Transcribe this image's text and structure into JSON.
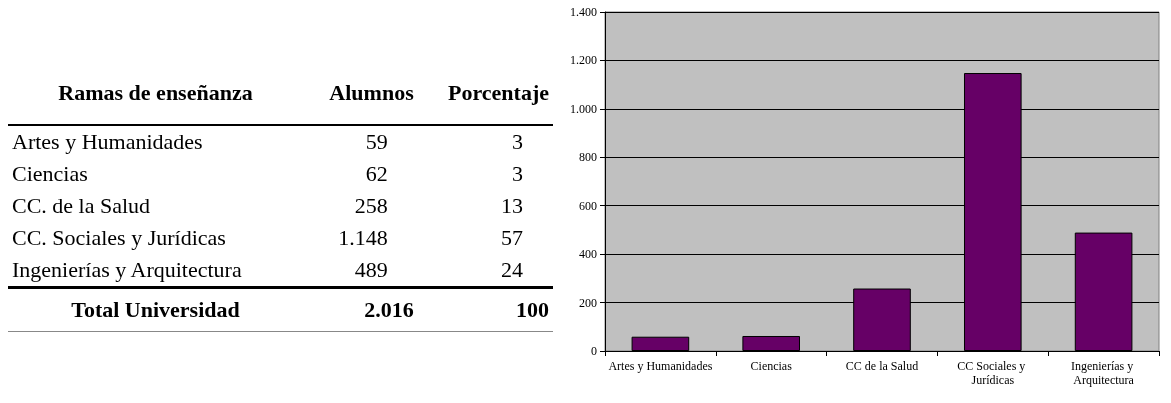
{
  "chart_data": [
    {
      "type": "other",
      "title": "Ramas de enseñanza",
      "categories": [
        "Artes y Humanidades",
        "Ciencias",
        "CC. de la Salud",
        "CC. Sociales y Jurídicas",
        "Ingenierías y Arquitectura",
        "Total Universidad"
      ],
      "series": [
        {
          "name": "Alumnos",
          "values": [
            59,
            62,
            258,
            1148,
            489,
            2016
          ],
          "value_labels": [
            "59",
            "62",
            "258",
            "1.148",
            "489",
            "2.016"
          ]
        },
        {
          "name": "Porcentaje",
          "values": [
            3,
            3,
            13,
            57,
            24,
            100
          ],
          "value_labels": [
            "3",
            "3",
            "13",
            "57",
            "24",
            "100"
          ]
        }
      ]
    },
    {
      "type": "bar",
      "categories": [
        "Artes y Humanidades",
        "Ciencias",
        "CC de la Salud",
        "CC Sociales y Jurídicas",
        "Ingenierías y Arquitectura"
      ],
      "values": [
        59,
        62,
        258,
        1148,
        489
      ],
      "color": "#660066",
      "ylim": [
        0,
        1400
      ],
      "yticks": [
        0,
        200,
        400,
        600,
        800,
        {
          "value": 1000,
          "label": "1.000"
        },
        {
          "value": 1200,
          "label": "1.200"
        },
        {
          "value": 1400,
          "label": "1.400"
        }
      ],
      "grid": "y"
    }
  ]
}
